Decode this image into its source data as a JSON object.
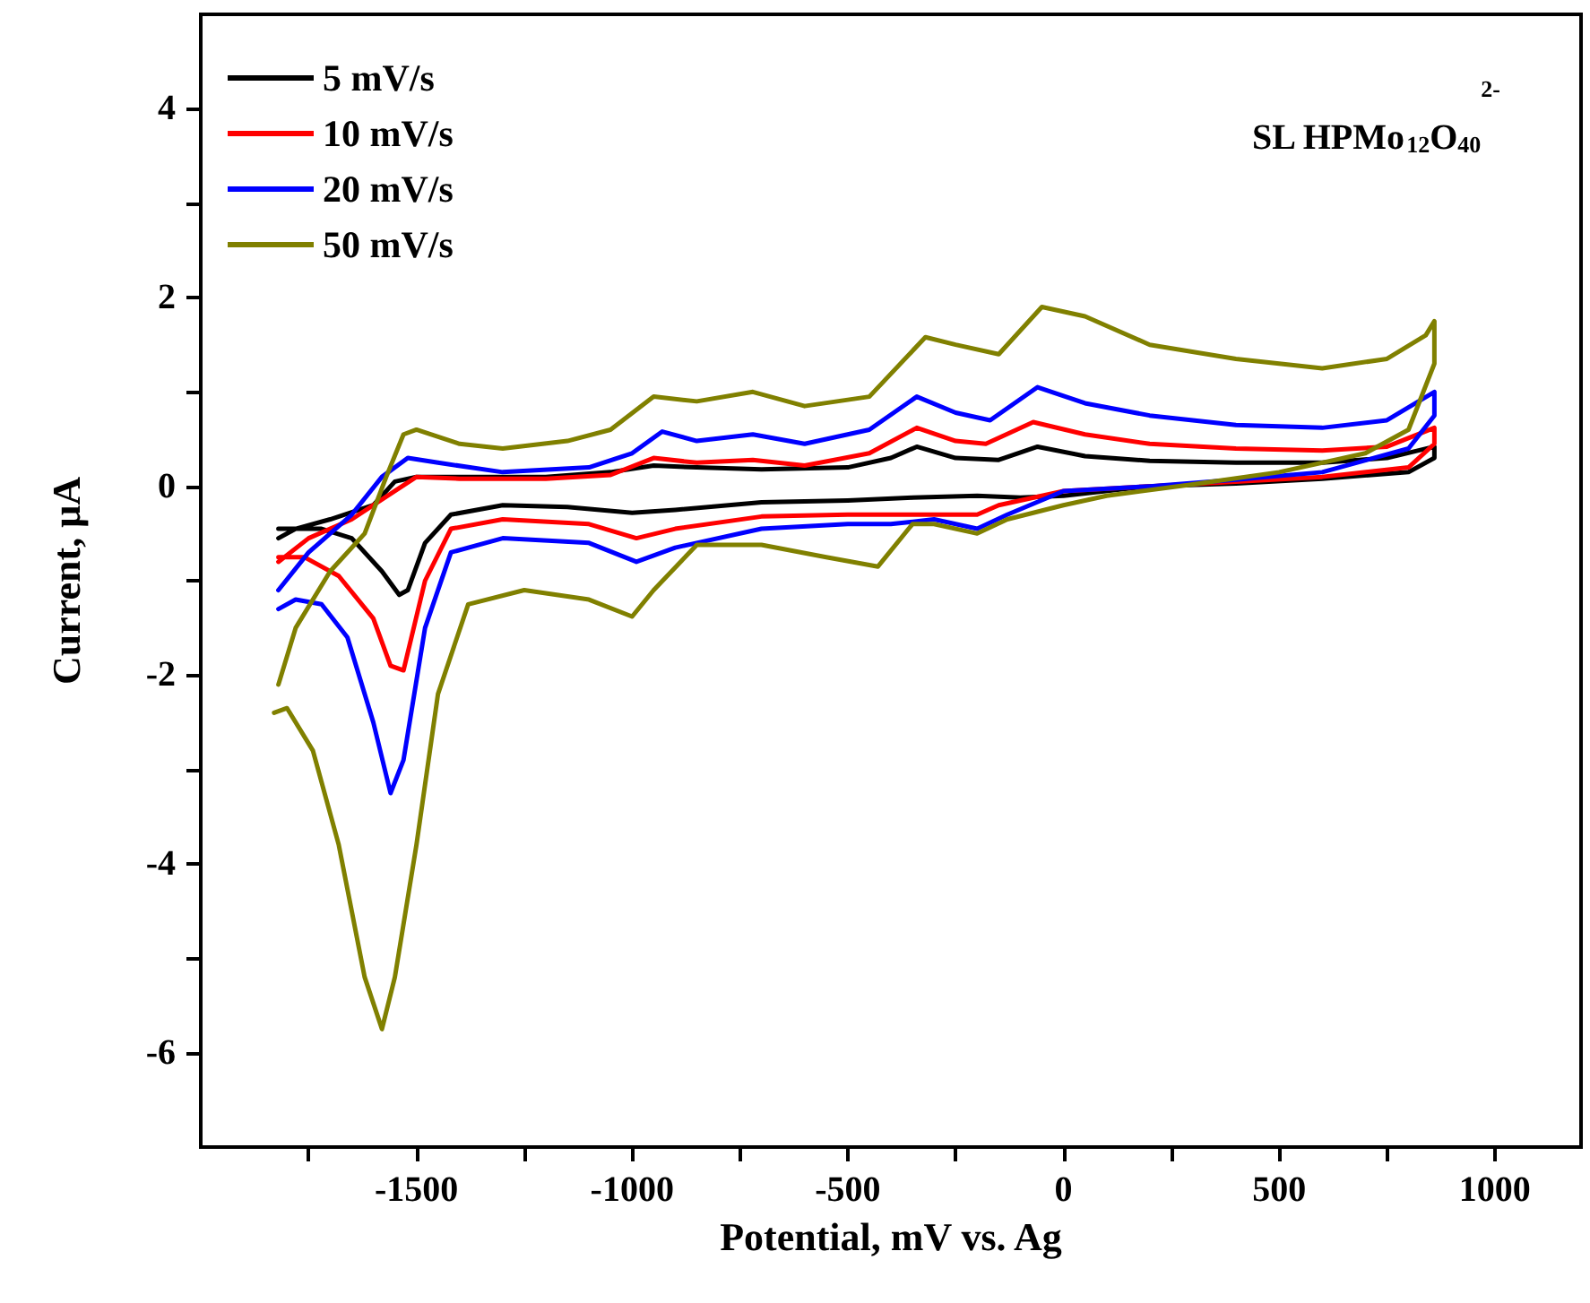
{
  "chart_data": {
    "type": "line",
    "xlabel": "Potential, mV vs. Ag",
    "ylabel": "Current, μA",
    "annotations": [
      "SL HPMo$_{12}$O$_{40}$$^{2-}$"
    ],
    "xlim": [
      -2000,
      1200
    ],
    "xticks": [
      {
        "value": -1750,
        "label": null
      },
      -1500,
      {
        "value": -1250,
        "label": null
      },
      -1000,
      {
        "value": -750,
        "label": null
      },
      -500,
      {
        "value": -250,
        "label": null
      },
      0,
      {
        "value": 250,
        "label": null
      },
      500,
      {
        "value": 750,
        "label": null
      },
      1000
    ],
    "ylim": [
      -7,
      5
    ],
    "yticks": [
      -6,
      {
        "value": -5,
        "label": null
      },
      -4,
      {
        "value": -3,
        "label": null
      },
      -2,
      {
        "value": -1,
        "label": null
      },
      0,
      {
        "value": 1,
        "label": null
      },
      2,
      {
        "value": 3,
        "label": null
      },
      4
    ],
    "grid": false,
    "legend": "top left",
    "marker": "none",
    "line_style": "solid",
    "series": [
      {
        "name": "5 mV/s",
        "color": "#000000",
        "x": [
          -1820,
          -1780,
          -1700,
          -1600,
          -1550,
          -1500,
          -1400,
          -1200,
          -1050,
          -950,
          -850,
          -700,
          -500,
          -400,
          -340,
          -250,
          -150,
          -60,
          50,
          200,
          400,
          600,
          750,
          860,
          860,
          800,
          600,
          400,
          200,
          0,
          -100,
          -200,
          -350,
          -500,
          -700,
          -900,
          -1000,
          -1150,
          -1300,
          -1420,
          -1480,
          -1520,
          -1540,
          -1580,
          -1650,
          -1720,
          -1820
        ],
        "values": [
          -0.55,
          -0.45,
          -0.35,
          -0.2,
          0.05,
          0.1,
          0.1,
          0.1,
          0.15,
          0.22,
          0.2,
          0.18,
          0.2,
          0.3,
          0.42,
          0.3,
          0.28,
          0.42,
          0.32,
          0.27,
          0.25,
          0.25,
          0.3,
          0.42,
          0.3,
          0.15,
          0.08,
          0.03,
          0,
          -0.1,
          -0.12,
          -0.1,
          -0.12,
          -0.15,
          -0.17,
          -0.25,
          -0.28,
          -0.22,
          -0.2,
          -0.3,
          -0.6,
          -1.1,
          -1.15,
          -0.9,
          -0.55,
          -0.45,
          -0.45
        ]
      },
      {
        "name": "10 mV/s",
        "color": "#ff0000",
        "x": [
          -1820,
          -1750,
          -1650,
          -1550,
          -1500,
          -1400,
          -1200,
          -1050,
          -950,
          -850,
          -720,
          -600,
          -450,
          -340,
          -250,
          -180,
          -70,
          50,
          200,
          400,
          600,
          750,
          860,
          860,
          800,
          600,
          400,
          200,
          0,
          -150,
          -200,
          -300,
          -400,
          -500,
          -700,
          -900,
          -990,
          -1100,
          -1300,
          -1420,
          -1480,
          -1530,
          -1560,
          -1600,
          -1680,
          -1760,
          -1820
        ],
        "values": [
          -0.8,
          -0.55,
          -0.35,
          -0.05,
          0.1,
          0.08,
          0.08,
          0.12,
          0.3,
          0.25,
          0.28,
          0.22,
          0.35,
          0.62,
          0.48,
          0.45,
          0.68,
          0.55,
          0.45,
          0.4,
          0.38,
          0.42,
          0.62,
          0.45,
          0.2,
          0.1,
          0.05,
          0,
          -0.05,
          -0.2,
          -0.3,
          -0.3,
          -0.3,
          -0.3,
          -0.32,
          -0.45,
          -0.55,
          -0.4,
          -0.35,
          -0.45,
          -1,
          -1.95,
          -1.9,
          -1.4,
          -0.95,
          -0.75,
          -0.75
        ]
      },
      {
        "name": "20 mV/s",
        "color": "#0000ff",
        "x": [
          -1820,
          -1750,
          -1650,
          -1580,
          -1520,
          -1450,
          -1300,
          -1100,
          -1000,
          -930,
          -850,
          -720,
          -600,
          -450,
          -340,
          -250,
          -170,
          -60,
          50,
          200,
          400,
          600,
          750,
          860,
          860,
          800,
          600,
          400,
          200,
          0,
          -130,
          -200,
          -300,
          -400,
          -500,
          -700,
          -900,
          -990,
          -1100,
          -1300,
          -1420,
          -1480,
          -1530,
          -1560,
          -1600,
          -1660,
          -1720,
          -1780,
          -1820
        ],
        "values": [
          -1.1,
          -0.7,
          -0.3,
          0.1,
          0.3,
          0.25,
          0.15,
          0.2,
          0.35,
          0.58,
          0.48,
          0.55,
          0.45,
          0.6,
          0.95,
          0.78,
          0.7,
          1.05,
          0.88,
          0.75,
          0.65,
          0.62,
          0.7,
          1,
          0.75,
          0.4,
          0.15,
          0.07,
          0,
          -0.05,
          -0.3,
          -0.45,
          -0.35,
          -0.4,
          -0.4,
          -0.45,
          -0.65,
          -0.8,
          -0.6,
          -0.55,
          -0.7,
          -1.5,
          -2.9,
          -3.25,
          -2.5,
          -1.6,
          -1.25,
          -1.2,
          -1.3
        ]
      },
      {
        "name": "50 mV/s",
        "color": "#808000",
        "x": [
          -1820,
          -1780,
          -1700,
          -1620,
          -1570,
          -1530,
          -1500,
          -1400,
          -1300,
          -1150,
          -1050,
          -950,
          -850,
          -720,
          -600,
          -450,
          -320,
          -250,
          -150,
          -50,
          50,
          200,
          400,
          600,
          750,
          840,
          860,
          860,
          800,
          700,
          500,
          300,
          100,
          0,
          -130,
          -200,
          -300,
          -350,
          -430,
          -550,
          -700,
          -850,
          -950,
          -1000,
          -1100,
          -1250,
          -1380,
          -1450,
          -1500,
          -1550,
          -1580,
          -1620,
          -1680,
          -1740,
          -1800,
          -1830
        ],
        "values": [
          -2.1,
          -1.5,
          -0.9,
          -0.5,
          0.1,
          0.55,
          0.6,
          0.45,
          0.4,
          0.48,
          0.6,
          0.95,
          0.9,
          1,
          0.85,
          0.95,
          1.58,
          1.5,
          1.4,
          1.9,
          1.8,
          1.5,
          1.35,
          1.25,
          1.35,
          1.6,
          1.75,
          1.3,
          0.6,
          0.35,
          0.15,
          0.02,
          -0.1,
          -0.2,
          -0.35,
          -0.5,
          -0.4,
          -0.4,
          -0.85,
          -0.75,
          -0.62,
          -0.62,
          -1.1,
          -1.38,
          -1.2,
          -1.1,
          -1.25,
          -2.2,
          -3.8,
          -5.2,
          -5.75,
          -5.2,
          -3.8,
          -2.8,
          -2.35,
          -2.4
        ]
      }
    ]
  }
}
